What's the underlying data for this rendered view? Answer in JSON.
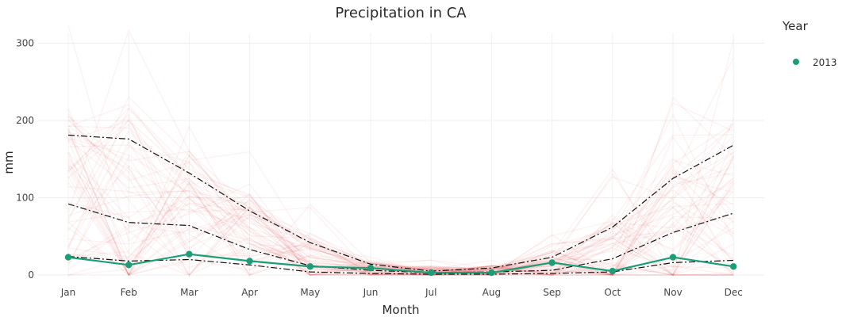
{
  "chart_data": {
    "type": "line",
    "title": "Precipitation in CA",
    "xlabel": "Month",
    "ylabel": "mm",
    "categories": [
      "Jan",
      "Feb",
      "Mar",
      "Apr",
      "May",
      "Jun",
      "Jul",
      "Aug",
      "Sep",
      "Oct",
      "Nov",
      "Dec"
    ],
    "ylim": [
      0,
      310
    ],
    "yticks": [
      0,
      100,
      200,
      300
    ],
    "grid": true,
    "legend": {
      "title": "Year",
      "position": "right",
      "entries": [
        "2013"
      ]
    },
    "series": [
      {
        "name": "2013",
        "style": "solid-markers",
        "color": "#1b9e77",
        "values": [
          23,
          13,
          27,
          18,
          11,
          9,
          3,
          3,
          16,
          5,
          23,
          11
        ]
      },
      {
        "style": "dash-dot",
        "color": "#111111",
        "values": [
          181,
          176,
          132,
          83,
          42,
          14,
          5,
          9,
          23,
          62,
          125,
          168
        ]
      },
      {
        "style": "dash-dot",
        "color": "#111111",
        "values": [
          92,
          68,
          64,
          33,
          12,
          6,
          3,
          4,
          6,
          21,
          55,
          80
        ]
      },
      {
        "style": "dash-dot",
        "color": "#111111",
        "values": [
          24,
          18,
          20,
          13,
          4,
          2,
          1,
          1,
          2,
          4,
          16,
          19
        ]
      }
    ],
    "historical_years_color": "#d62728"
  }
}
